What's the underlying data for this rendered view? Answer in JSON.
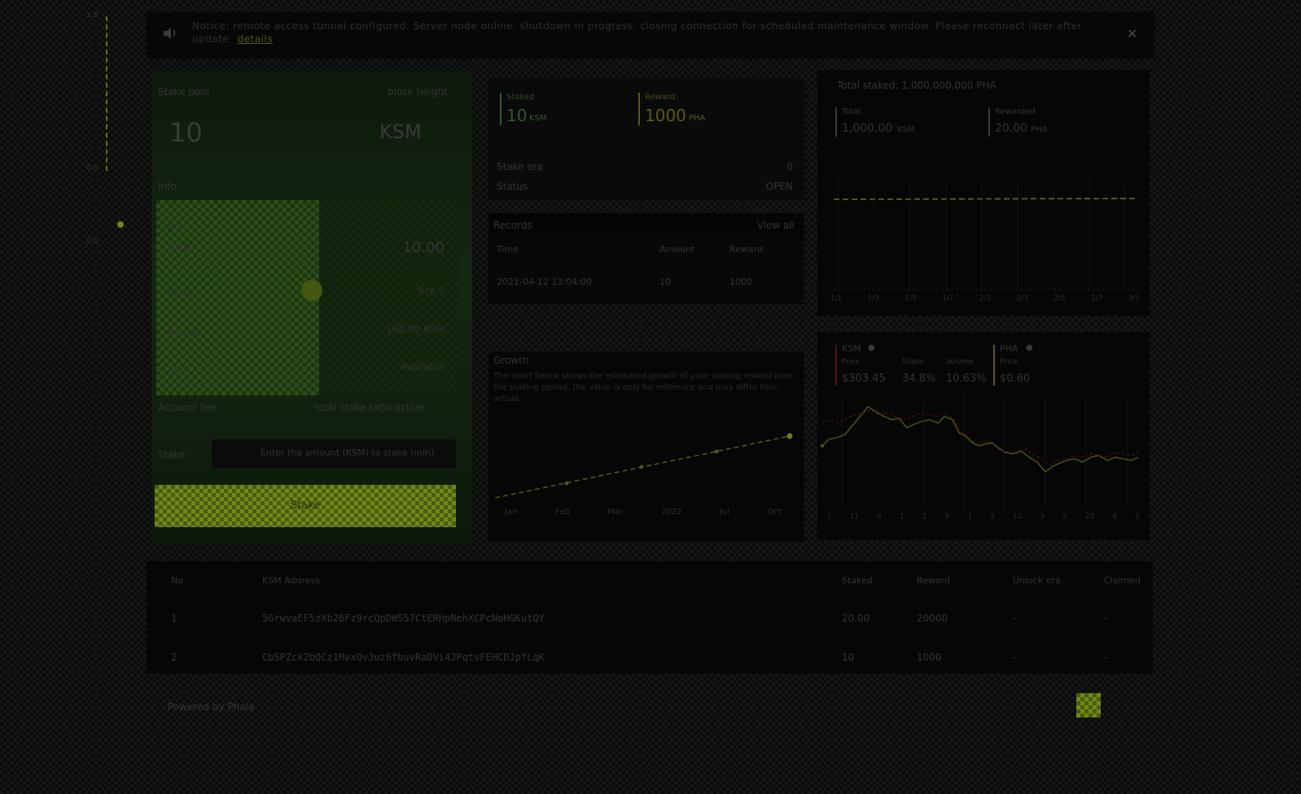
{
  "notice": {
    "text": "Notice: remote access tunnel configured. Server node online, shutdown in progress, closing connection for scheduled maintenance window. Please reconnect later after update",
    "link": "details"
  },
  "side_scale": {
    "top": "1.0",
    "mid": "0.5",
    "bottom": "0.0"
  },
  "left_panel": {
    "title": "Stake pool",
    "meta": "block height",
    "amount": "10",
    "unit": "KSM",
    "section": "Info",
    "rows": [
      {
        "label": "Era",
        "value": ""
      },
      {
        "label": "Total",
        "value": "10.00"
      },
      {
        "label": "Start",
        "value": "Era 5"
      },
      {
        "label": "Bound",
        "value": "100.00 KSM"
      },
      {
        "label": "End",
        "value": "Available"
      }
    ],
    "fee_label": "Account fee",
    "fee_value": "total stake ratio active",
    "input_label": "Stake",
    "input_value": "Enter the amount (KSM) to stake (min)",
    "button": "Stake"
  },
  "mid_top": {
    "stat1_label": "Staked",
    "stat1_value": "10",
    "stat1_unit": "KSM",
    "stat2_label": "Reward",
    "stat2_value": "1000",
    "stat2_unit": "PHA",
    "row1_label": "Stake era",
    "row1_value": "0",
    "row2_label": "Status",
    "row2_value": "OPEN"
  },
  "records": {
    "title": "Records",
    "link": "View all",
    "headers": [
      "Time",
      "Amount",
      "Reward"
    ],
    "rows": [
      [
        "2021-04-12 13:04:00",
        "10",
        "1000"
      ]
    ]
  },
  "growth": {
    "title": "Growth",
    "desc": "The chart below shows the estimated growth of your staking reward over the staking period, the value is only for reference and may differ from actual.",
    "x_labels": [
      "Jan",
      "Feb",
      "Mar",
      "2022",
      "Jul",
      "Oct"
    ]
  },
  "right_top": {
    "title": "Total staked: 1,000,000,000 PHA",
    "stat1_label": "Total",
    "stat1_value": "1,000.00",
    "stat1_unit": "KSM",
    "stat2_label": "Rewarded",
    "stat2_value": "20.00",
    "stat2_unit": "PHA",
    "x_labels": [
      "1/1",
      "1/3",
      "1/5",
      "1/7",
      "2/1",
      "2/3",
      "2/5",
      "2/7",
      "3/1"
    ]
  },
  "price": {
    "a_name": "KSM",
    "a_cols": [
      "Price",
      "Share",
      "Volume"
    ],
    "a_price": "$303.45",
    "a_pct": "34.8%",
    "a_vol": "10.63%",
    "b_name": "PHA",
    "b_col": "Price",
    "b_price": "$0.60",
    "x_labels": [
      "1",
      "11",
      "6",
      "1",
      "1",
      "9",
      "1",
      "2",
      "12",
      "3",
      "2",
      "25",
      "6",
      "2"
    ]
  },
  "table": {
    "headers": [
      "No.",
      "KSM Address",
      "Staked",
      "Reward",
      "Unlock era",
      "Claimed"
    ],
    "rows": [
      [
        "1",
        "5GrwvaEF5zXb26Fz9rcQpDWS57CtERHpNehXCPcNoHGKutQY",
        "20.00",
        "20000",
        "-",
        "-"
      ],
      [
        "2",
        "CbSPZck2bQCz1MvxQvJuz6fbuvRaDVi4JPqtvFEHCDJpfLqK",
        "10",
        "1000",
        "-",
        "-"
      ]
    ]
  },
  "footer": {
    "text": "Powered by Phala"
  },
  "colors": {
    "accent": "#7f9a1c",
    "green": "#2e6b2a",
    "red": "#6a1414",
    "yellow": "#8c8a1a"
  }
}
